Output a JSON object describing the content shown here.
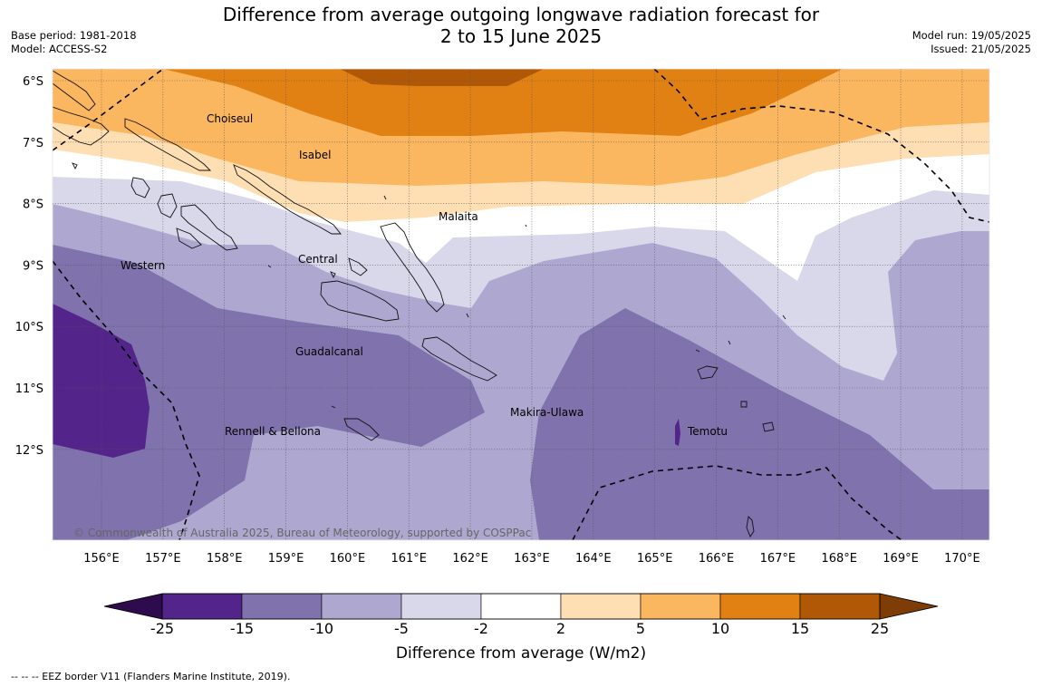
{
  "header": {
    "title_line1": "Difference from average outgoing longwave radiation forecast for",
    "title_line2": "2 to 15 June 2025",
    "base_period": "Base period: 1981-2018",
    "model": "Model: ACCESS-S2",
    "model_run": "Model run: 19/05/2025",
    "issued": "Issued: 21/05/2025"
  },
  "map": {
    "latitude_labels": [
      "6°S",
      "7°S",
      "8°S",
      "9°S",
      "10°S",
      "11°S",
      "12°S"
    ],
    "longitude_labels": [
      "156°E",
      "157°E",
      "158°E",
      "159°E",
      "160°E",
      "161°E",
      "162°E",
      "163°E",
      "164°E",
      "165°E",
      "166°E",
      "167°E",
      "168°E",
      "169°E",
      "170°E"
    ],
    "regions": [
      {
        "name": "Choiseul"
      },
      {
        "name": "Isabel"
      },
      {
        "name": "Malaita"
      },
      {
        "name": "Western"
      },
      {
        "name": "Central"
      },
      {
        "name": "Guadalcanal"
      },
      {
        "name": "Makira-Ulawa"
      },
      {
        "name": "Temotu"
      },
      {
        "name": "Rennell & Bellona"
      }
    ],
    "copyright": "© Commonwealth of Australia 2025, Bureau of Meteorology, supported by COSPPac"
  },
  "colorbar": {
    "ticks": [
      "-25",
      "-15",
      "-10",
      "-5",
      "-2",
      "2",
      "5",
      "10",
      "15",
      "25"
    ],
    "colors": [
      "#53248a",
      "#7f72ad",
      "#aea8d1",
      "#d8d8ea",
      "#ffffff",
      "#fedfb4",
      "#fbb660",
      "#e18114",
      "#b15806"
    ],
    "under_color": "#2e0b4c",
    "over_color": "#7e3c06",
    "label": "Difference from average (W/m2)"
  },
  "footer": {
    "eez_note": "--  --  -- EEZ border V11 (Flanders Marine Institute, 2019)."
  }
}
